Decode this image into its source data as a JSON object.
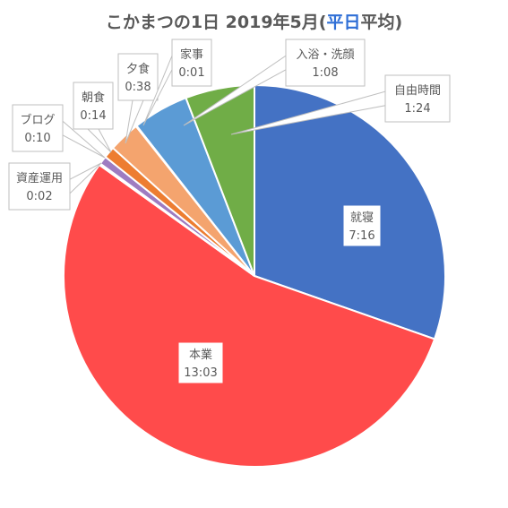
{
  "chart_data": {
    "type": "pie",
    "title": {
      "prefix": "こかまつの1日 2019年5月(",
      "highlight": "平日",
      "suffix": "平均)",
      "highlight_color": "#2f6fd6"
    },
    "slices": [
      {
        "name": "就寝",
        "value_label": "7:16",
        "minutes": 436,
        "color": "#4472c4"
      },
      {
        "name": "本業",
        "value_label": "13:03",
        "minutes": 783,
        "color": "#ff4b4b"
      },
      {
        "name": "資産運用",
        "value_label": "0:02",
        "minutes": 2,
        "color": "#9e7cc1"
      },
      {
        "name": "ブログ",
        "value_label": "0:10",
        "minutes": 10,
        "color": "#9e7cc1"
      },
      {
        "name": "朝食",
        "value_label": "0:14",
        "minutes": 14,
        "color": "#ed7d31"
      },
      {
        "name": "夕食",
        "value_label": "0:38",
        "minutes": 38,
        "color": "#f4a46e"
      },
      {
        "name": "家事",
        "value_label": "0:01",
        "minutes": 1,
        "color": "#f4a46e"
      },
      {
        "name": "入浴・洗顔",
        "value_label": "1:08",
        "minutes": 68,
        "color": "#5b9bd5"
      },
      {
        "name": "自由時間",
        "value_label": "1:24",
        "minutes": 84,
        "color": "#70ad47"
      }
    ]
  }
}
